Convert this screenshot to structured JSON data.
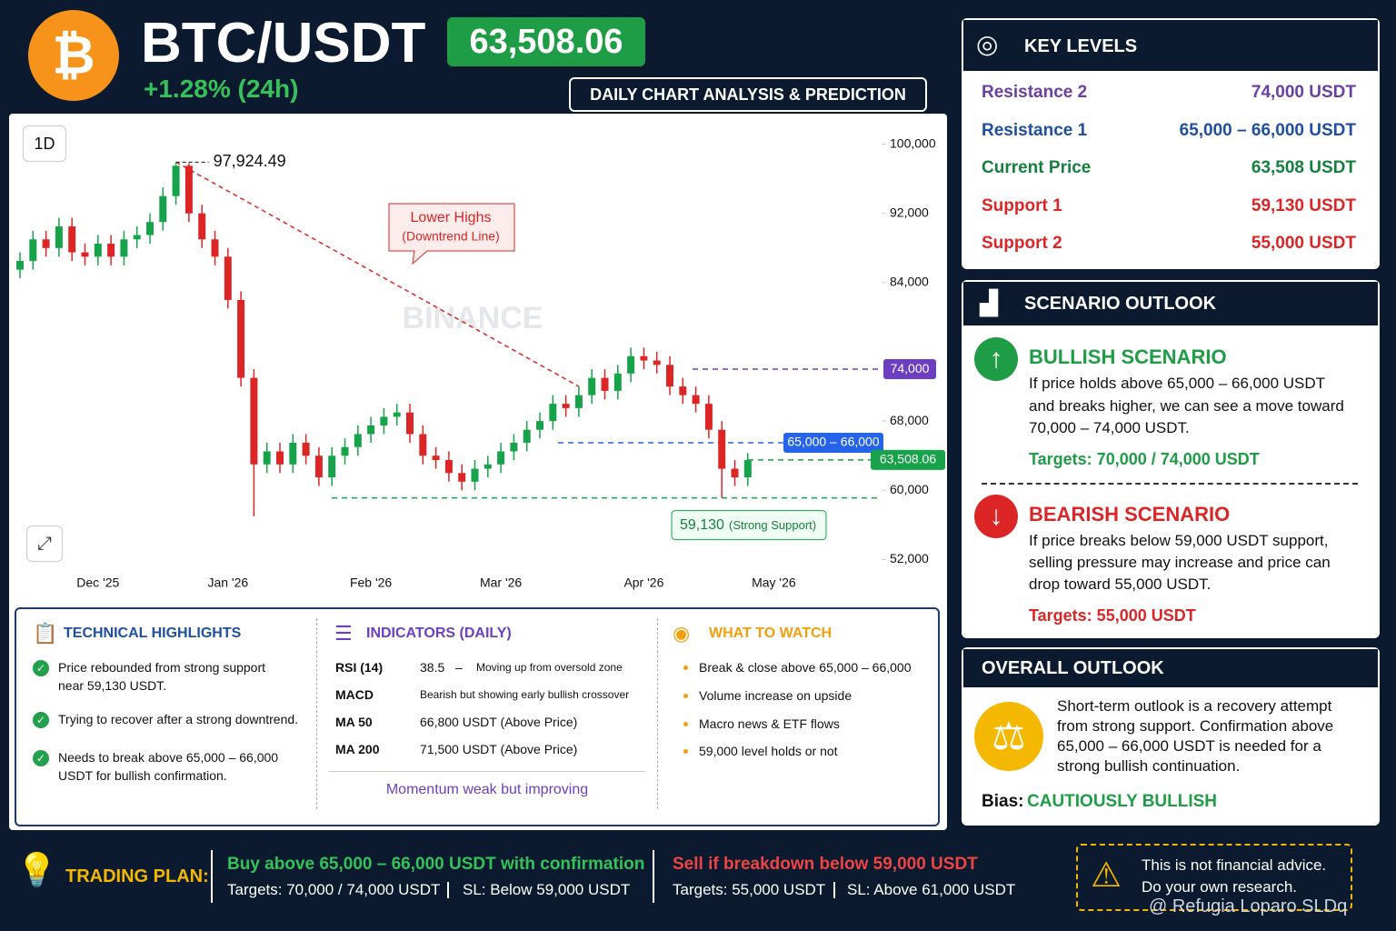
{
  "header": {
    "pair": "BTC/USDT",
    "price": "63,508.06",
    "change": "+1.28% (24h)",
    "subtitle": "DAILY CHART ANALYSIS & PREDICTION"
  },
  "chart_data": {
    "type": "candlestick",
    "timeframe": "1D",
    "watermark": "BINANCE",
    "categories": [
      null,
      null,
      null,
      null,
      null,
      null,
      "Dec '25",
      null,
      null,
      null,
      null,
      null,
      null,
      null,
      null,
      null,
      "Jan '26",
      null,
      null,
      null,
      null,
      null,
      null,
      null,
      null,
      null,
      null,
      "Feb '26",
      null,
      null,
      null,
      null,
      null,
      null,
      null,
      null,
      null,
      "Mar '26",
      null,
      null,
      null,
      null,
      null,
      null,
      null,
      null,
      null,
      null,
      "Apr '26",
      null,
      null,
      null,
      null,
      null,
      null,
      null,
      null,
      null,
      "May '26",
      null
    ],
    "series": [
      {
        "up_color": "#16a34a",
        "down_color": "#dc2626",
        "open": [
          85500,
          86500,
          89000,
          88000,
          90500,
          87500,
          87000,
          88500,
          87000,
          89000,
          89500,
          91000,
          94000,
          97500,
          92000,
          89000,
          87000,
          82000,
          73000,
          63000,
          64500,
          63000,
          65500,
          64000,
          61500,
          64000,
          65000,
          66500,
          67500,
          68500,
          69000,
          66500,
          64000,
          63500,
          62000,
          61000,
          62500,
          63000,
          64500,
          65500,
          67000,
          68000,
          70000,
          69500,
          71000,
          73000,
          71500,
          73500,
          75500,
          75000,
          74500,
          72000,
          71000,
          70000,
          67000,
          62500,
          61500,
          null,
          null,
          null
        ],
        "high": [
          87500,
          90000,
          90000,
          91500,
          91500,
          88500,
          89500,
          89500,
          90000,
          90500,
          92000,
          95000,
          97924.49,
          97800,
          93000,
          90000,
          88000,
          83000,
          74000,
          65500,
          65500,
          66500,
          66500,
          65000,
          65000,
          66000,
          67500,
          68500,
          69500,
          70000,
          70000,
          67500,
          65000,
          64500,
          63000,
          63500,
          64000,
          65500,
          66500,
          68000,
          69000,
          71000,
          71000,
          72000,
          74000,
          74000,
          74500,
          76500,
          76500,
          76000,
          75500,
          73000,
          72000,
          71000,
          68000,
          63500,
          64300,
          null,
          null,
          null
        ],
        "low": [
          84500,
          85500,
          87000,
          87000,
          86500,
          86000,
          86000,
          86000,
          86000,
          88000,
          88500,
          90000,
          93000,
          91000,
          88000,
          86000,
          81000,
          72000,
          57000,
          62000,
          62000,
          62000,
          63000,
          60500,
          60500,
          63000,
          64000,
          65500,
          66500,
          67500,
          65500,
          63000,
          62500,
          61000,
          60000,
          60000,
          61500,
          62000,
          63500,
          64500,
          66000,
          67000,
          68500,
          68500,
          70000,
          70500,
          70500,
          72500,
          74000,
          73500,
          71000,
          70000,
          69000,
          66000,
          59130,
          60500,
          60500,
          null,
          null,
          null
        ],
        "close": [
          86500,
          89000,
          88000,
          90500,
          87500,
          87000,
          88500,
          87000,
          89000,
          89500,
          91000,
          94000,
          97500,
          92000,
          89000,
          87000,
          82000,
          73000,
          63000,
          64500,
          63000,
          65500,
          64000,
          61500,
          64000,
          65000,
          66500,
          67500,
          68500,
          69000,
          66500,
          64000,
          63500,
          62000,
          61000,
          62500,
          63000,
          64500,
          65500,
          67000,
          68000,
          70000,
          69500,
          71000,
          73000,
          71500,
          73500,
          75500,
          75000,
          74500,
          72000,
          71000,
          70000,
          67000,
          62500,
          61500,
          63508.06,
          null,
          null,
          null
        ]
      }
    ],
    "ylim": [
      51000,
      103000
    ],
    "yticks": [
      {
        "value": 52000,
        "label": "52,000"
      },
      {
        "value": 60000,
        "label": "60,000"
      },
      {
        "value": 68000,
        "label": "68,000"
      },
      {
        "value": 84000,
        "label": "84,000"
      },
      {
        "value": 92000,
        "label": "92,000"
      },
      {
        "value": 100000,
        "label": "100,000"
      }
    ],
    "levels": [
      {
        "label": "74,000",
        "value": 74000,
        "color": "#6d3fc0"
      },
      {
        "label": "65,000 – 66,000",
        "values": [
          65000,
          66000
        ],
        "color": "#2563eb"
      },
      {
        "label": "63,508.06",
        "value": 63508.06,
        "color": "#16a34a"
      },
      {
        "label": "59,130",
        "note": "(Strong Support)",
        "value": 59130,
        "color": "#16a34a"
      }
    ],
    "peak": {
      "label": "97,924.49",
      "value": 97924.49
    },
    "annotation": {
      "title": "Lower Highs",
      "text": "(Downtrend Line)"
    }
  },
  "key_levels": {
    "title": "KEY LEVELS",
    "rows": [
      [
        "Resistance 2",
        "74,000 USDT"
      ],
      [
        "Resistance 1",
        "65,000 – 66,000 USDT"
      ],
      [
        "Current Price",
        "63,508 USDT"
      ],
      [
        "Support 1",
        "59,130 USDT"
      ],
      [
        "Support 2",
        "55,000 USDT"
      ]
    ]
  },
  "scenario": {
    "title": "SCENARIO OUTLOOK",
    "bullish": {
      "title": "BULLISH SCENARIO",
      "lines": [
        "If price holds above 65,000 – 66,000 USDT",
        "and breaks higher, we can see a move toward",
        "70,000 – 74,000 USDT."
      ],
      "targets": "Targets: 70,000 / 74,000 USDT"
    },
    "bearish": {
      "title": "BEARISH SCENARIO",
      "lines": [
        "If price breaks below 59,000 USDT support,",
        "selling pressure may increase and price can",
        "drop toward 55,000 USDT."
      ],
      "targets": "Targets: 55,000 USDT"
    }
  },
  "overall": {
    "title": "OVERALL OUTLOOK",
    "lines": [
      "Short-term outlook is a recovery attempt",
      "from strong support. Confirmation above",
      "65,000 – 66,000 USDT is needed for a",
      "strong bullish continuation."
    ],
    "bias_label": "Bias:",
    "bias": "CAUTIOUSLY BULLISH"
  },
  "technical": {
    "title": "TECHNICAL HIGHLIGHTS",
    "items": [
      [
        "Price rebounded from strong support",
        "near 59,130 USDT."
      ],
      [
        "Trying to recover after a strong downtrend."
      ],
      [
        "Needs to break above 65,000 – 66,000",
        "USDT for bullish confirmation."
      ]
    ]
  },
  "indicators": {
    "title": "INDICATORS (DAILY)",
    "rows": [
      [
        "RSI (14)",
        "38.5",
        "–",
        "Moving up from oversold zone"
      ],
      [
        "MACD",
        "Bearish but showing early bullish crossover"
      ],
      [
        "MA 50",
        "66,800 USDT (Above Price)"
      ],
      [
        "MA 200",
        "71,500 USDT (Above Price)"
      ]
    ],
    "summary": "Momentum weak but improving"
  },
  "watch": {
    "title": "WHAT TO WATCH",
    "items": [
      "Break & close above 65,000 – 66,000",
      "Volume increase on upside",
      "Macro news & ETF flows",
      "59,000 level holds or not"
    ]
  },
  "trading_plan": {
    "title": "TRADING PLAN:",
    "buy": {
      "line": "Buy above 65,000 – 66,000 USDT with confirmation",
      "targets": "Targets: 70,000 / 74,000 USDT",
      "sl": "SL: Below 59,000 USDT"
    },
    "sell": {
      "line": "Sell if breakdown below 59,000 USDT",
      "targets": "Targets: 55,000 USDT",
      "sl": "SL: Above 61,000 USDT"
    }
  },
  "disclaimer": [
    "This is not financial advice.",
    "Do your own research."
  ],
  "footer": "@ Refugia Loparo SLDq"
}
